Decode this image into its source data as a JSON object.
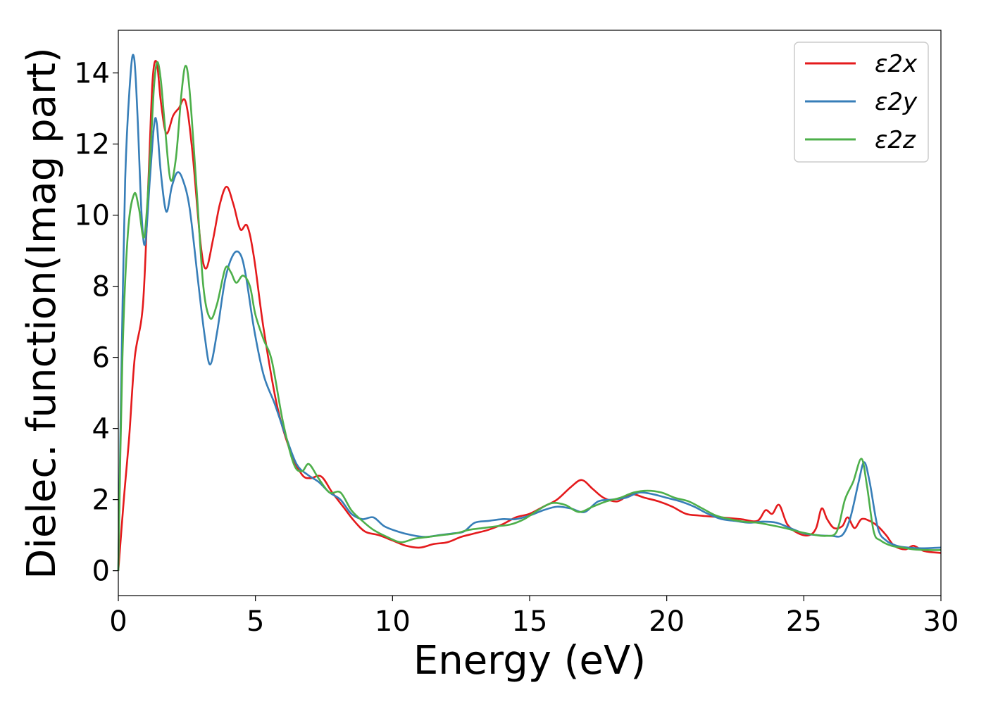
{
  "chart_data": {
    "type": "line",
    "title": "",
    "xlabel": "Energy (eV)",
    "ylabel": "Dielec. function(Imag part)",
    "xlim": [
      0,
      30
    ],
    "ylim": [
      -0.7,
      15.2
    ],
    "xticks": [
      0,
      5,
      10,
      15,
      20,
      25,
      30
    ],
    "yticks": [
      0,
      2,
      4,
      6,
      8,
      10,
      12,
      14
    ],
    "grid": false,
    "legend_position": "top-right",
    "series": [
      {
        "name": "ε2x",
        "color": "#e41a1c",
        "points": [
          [
            0,
            0
          ],
          [
            0.2,
            2
          ],
          [
            0.4,
            3.8
          ],
          [
            0.6,
            6
          ],
          [
            0.9,
            7.5
          ],
          [
            1.1,
            11
          ],
          [
            1.25,
            13.8
          ],
          [
            1.4,
            14.3
          ],
          [
            1.55,
            13.2
          ],
          [
            1.75,
            12.3
          ],
          [
            2.0,
            12.8
          ],
          [
            2.2,
            13.0
          ],
          [
            2.45,
            13.2
          ],
          [
            2.7,
            11.8
          ],
          [
            3.0,
            9.2
          ],
          [
            3.2,
            8.5
          ],
          [
            3.45,
            9.3
          ],
          [
            3.7,
            10.3
          ],
          [
            3.95,
            10.8
          ],
          [
            4.2,
            10.3
          ],
          [
            4.45,
            9.6
          ],
          [
            4.7,
            9.7
          ],
          [
            4.95,
            8.8
          ],
          [
            5.3,
            6.8
          ],
          [
            5.8,
            4.6
          ],
          [
            6.3,
            3.3
          ],
          [
            6.7,
            2.7
          ],
          [
            7.0,
            2.6
          ],
          [
            7.4,
            2.65
          ],
          [
            7.8,
            2.2
          ],
          [
            8.2,
            1.8
          ],
          [
            8.6,
            1.4
          ],
          [
            9.0,
            1.1
          ],
          [
            9.5,
            1.0
          ],
          [
            10.0,
            0.85
          ],
          [
            10.5,
            0.7
          ],
          [
            11.0,
            0.65
          ],
          [
            11.5,
            0.75
          ],
          [
            12.0,
            0.8
          ],
          [
            12.5,
            0.95
          ],
          [
            13.0,
            1.05
          ],
          [
            13.5,
            1.15
          ],
          [
            14.0,
            1.3
          ],
          [
            14.5,
            1.5
          ],
          [
            15.0,
            1.6
          ],
          [
            15.5,
            1.8
          ],
          [
            16.0,
            2.0
          ],
          [
            16.5,
            2.35
          ],
          [
            16.9,
            2.55
          ],
          [
            17.3,
            2.3
          ],
          [
            17.7,
            2.05
          ],
          [
            18.2,
            1.95
          ],
          [
            18.7,
            2.15
          ],
          [
            19.2,
            2.05
          ],
          [
            19.7,
            1.95
          ],
          [
            20.2,
            1.8
          ],
          [
            20.7,
            1.6
          ],
          [
            21.2,
            1.55
          ],
          [
            22.0,
            1.5
          ],
          [
            22.7,
            1.45
          ],
          [
            23.3,
            1.4
          ],
          [
            23.6,
            1.7
          ],
          [
            23.85,
            1.6
          ],
          [
            24.1,
            1.85
          ],
          [
            24.4,
            1.3
          ],
          [
            24.8,
            1.05
          ],
          [
            25.2,
            1.0
          ],
          [
            25.45,
            1.2
          ],
          [
            25.65,
            1.75
          ],
          [
            25.85,
            1.45
          ],
          [
            26.1,
            1.2
          ],
          [
            26.4,
            1.25
          ],
          [
            26.6,
            1.5
          ],
          [
            26.85,
            1.2
          ],
          [
            27.1,
            1.45
          ],
          [
            27.4,
            1.4
          ],
          [
            27.7,
            1.25
          ],
          [
            28.0,
            1.0
          ],
          [
            28.3,
            0.7
          ],
          [
            28.7,
            0.6
          ],
          [
            29.0,
            0.7
          ],
          [
            29.4,
            0.55
          ],
          [
            30,
            0.5
          ]
        ]
      },
      {
        "name": "ε2y",
        "color": "#377eb8",
        "points": [
          [
            0,
            0
          ],
          [
            0.1,
            5
          ],
          [
            0.25,
            11
          ],
          [
            0.45,
            14.0
          ],
          [
            0.58,
            14.4
          ],
          [
            0.7,
            12.8
          ],
          [
            0.85,
            10
          ],
          [
            0.98,
            9.2
          ],
          [
            1.15,
            11.0
          ],
          [
            1.3,
            12.5
          ],
          [
            1.4,
            12.6
          ],
          [
            1.55,
            11.2
          ],
          [
            1.75,
            10.1
          ],
          [
            1.95,
            10.8
          ],
          [
            2.15,
            11.2
          ],
          [
            2.35,
            11.0
          ],
          [
            2.6,
            10.2
          ],
          [
            2.9,
            8.2
          ],
          [
            3.15,
            6.6
          ],
          [
            3.35,
            5.8
          ],
          [
            3.6,
            6.7
          ],
          [
            3.9,
            8.2
          ],
          [
            4.2,
            8.9
          ],
          [
            4.45,
            8.9
          ],
          [
            4.65,
            8.3
          ],
          [
            4.95,
            6.8
          ],
          [
            5.3,
            5.5
          ],
          [
            5.7,
            4.7
          ],
          [
            6.1,
            3.8
          ],
          [
            6.5,
            3.0
          ],
          [
            6.9,
            2.7
          ],
          [
            7.3,
            2.5
          ],
          [
            7.7,
            2.2
          ],
          [
            8.1,
            2.0
          ],
          [
            8.5,
            1.6
          ],
          [
            8.9,
            1.45
          ],
          [
            9.3,
            1.5
          ],
          [
            9.7,
            1.25
          ],
          [
            10.2,
            1.1
          ],
          [
            10.7,
            1.0
          ],
          [
            11.2,
            0.95
          ],
          [
            11.7,
            1.0
          ],
          [
            12.2,
            1.05
          ],
          [
            12.6,
            1.1
          ],
          [
            13.0,
            1.35
          ],
          [
            13.5,
            1.4
          ],
          [
            14.0,
            1.45
          ],
          [
            14.5,
            1.45
          ],
          [
            15.0,
            1.55
          ],
          [
            15.5,
            1.7
          ],
          [
            16.0,
            1.8
          ],
          [
            16.5,
            1.75
          ],
          [
            17.0,
            1.65
          ],
          [
            17.5,
            1.95
          ],
          [
            18.0,
            2.0
          ],
          [
            18.5,
            2.05
          ],
          [
            19.0,
            2.2
          ],
          [
            19.5,
            2.15
          ],
          [
            20.0,
            2.05
          ],
          [
            20.5,
            1.95
          ],
          [
            21.0,
            1.8
          ],
          [
            21.5,
            1.6
          ],
          [
            22.0,
            1.45
          ],
          [
            22.5,
            1.4
          ],
          [
            23.0,
            1.35
          ],
          [
            23.5,
            1.38
          ],
          [
            24.0,
            1.35
          ],
          [
            24.5,
            1.2
          ],
          [
            25.0,
            1.05
          ],
          [
            25.5,
            1.0
          ],
          [
            26.0,
            0.98
          ],
          [
            26.4,
            1.0
          ],
          [
            26.7,
            1.5
          ],
          [
            27.0,
            2.5
          ],
          [
            27.2,
            3.05
          ],
          [
            27.4,
            2.5
          ],
          [
            27.7,
            1.2
          ],
          [
            28.0,
            0.85
          ],
          [
            28.4,
            0.7
          ],
          [
            28.8,
            0.65
          ],
          [
            29.3,
            0.63
          ],
          [
            30,
            0.65
          ]
        ]
      },
      {
        "name": "ε2z",
        "color": "#4daf4a",
        "points": [
          [
            0,
            0
          ],
          [
            0.15,
            6
          ],
          [
            0.35,
            9.5
          ],
          [
            0.58,
            10.6
          ],
          [
            0.75,
            10.2
          ],
          [
            0.95,
            9.4
          ],
          [
            1.15,
            11.5
          ],
          [
            1.3,
            13.6
          ],
          [
            1.42,
            14.3
          ],
          [
            1.55,
            13.8
          ],
          [
            1.7,
            12.5
          ],
          [
            1.9,
            11.0
          ],
          [
            2.1,
            11.6
          ],
          [
            2.3,
            13.4
          ],
          [
            2.45,
            14.2
          ],
          [
            2.6,
            13.5
          ],
          [
            2.85,
            10.8
          ],
          [
            3.1,
            8.0
          ],
          [
            3.35,
            7.1
          ],
          [
            3.6,
            7.5
          ],
          [
            3.9,
            8.5
          ],
          [
            4.1,
            8.4
          ],
          [
            4.3,
            8.1
          ],
          [
            4.55,
            8.3
          ],
          [
            4.8,
            8.0
          ],
          [
            5.0,
            7.2
          ],
          [
            5.3,
            6.5
          ],
          [
            5.6,
            5.9
          ],
          [
            6.0,
            4.2
          ],
          [
            6.4,
            3.0
          ],
          [
            6.7,
            2.8
          ],
          [
            6.95,
            3.0
          ],
          [
            7.3,
            2.6
          ],
          [
            7.7,
            2.2
          ],
          [
            8.1,
            2.2
          ],
          [
            8.5,
            1.7
          ],
          [
            8.9,
            1.4
          ],
          [
            9.3,
            1.15
          ],
          [
            9.8,
            0.95
          ],
          [
            10.3,
            0.8
          ],
          [
            10.8,
            0.9
          ],
          [
            11.3,
            0.95
          ],
          [
            11.8,
            1.0
          ],
          [
            12.3,
            1.05
          ],
          [
            12.8,
            1.15
          ],
          [
            13.3,
            1.2
          ],
          [
            13.8,
            1.25
          ],
          [
            14.3,
            1.3
          ],
          [
            14.8,
            1.45
          ],
          [
            15.3,
            1.7
          ],
          [
            15.8,
            1.9
          ],
          [
            16.3,
            1.85
          ],
          [
            16.8,
            1.65
          ],
          [
            17.3,
            1.8
          ],
          [
            17.8,
            1.95
          ],
          [
            18.3,
            2.05
          ],
          [
            18.8,
            2.2
          ],
          [
            19.3,
            2.25
          ],
          [
            19.8,
            2.2
          ],
          [
            20.3,
            2.05
          ],
          [
            20.8,
            1.95
          ],
          [
            21.3,
            1.75
          ],
          [
            21.8,
            1.55
          ],
          [
            22.3,
            1.45
          ],
          [
            22.8,
            1.38
          ],
          [
            23.3,
            1.35
          ],
          [
            23.8,
            1.28
          ],
          [
            24.3,
            1.2
          ],
          [
            24.8,
            1.1
          ],
          [
            25.3,
            1.02
          ],
          [
            25.8,
            0.98
          ],
          [
            26.2,
            1.1
          ],
          [
            26.5,
            2.0
          ],
          [
            26.8,
            2.5
          ],
          [
            27.1,
            3.15
          ],
          [
            27.3,
            2.4
          ],
          [
            27.55,
            1.1
          ],
          [
            27.8,
            0.85
          ],
          [
            28.2,
            0.7
          ],
          [
            28.6,
            0.65
          ],
          [
            29.0,
            0.6
          ],
          [
            29.5,
            0.58
          ],
          [
            30,
            0.58
          ]
        ]
      }
    ]
  }
}
